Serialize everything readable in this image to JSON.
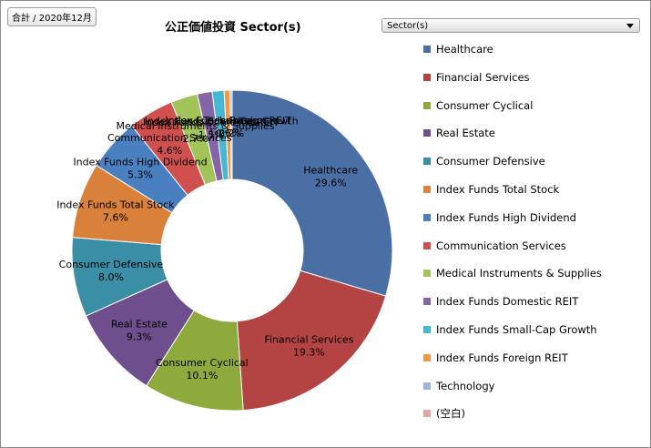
{
  "filter_tag": "合計 / 2020年12月",
  "dropdown": {
    "label": "Sector(s)"
  },
  "chart_data": {
    "type": "pie",
    "variant": "donut",
    "title": "公正価値投資  Sector(s)",
    "legend_position": "right",
    "slices": [
      {
        "label": "Healthcare",
        "value": 29.6,
        "display": "29.6%",
        "color": "#4a6fa5"
      },
      {
        "label": "Financial Services",
        "value": 19.3,
        "display": "19.3%",
        "color": "#b44444"
      },
      {
        "label": "Consumer Cyclical",
        "value": 10.1,
        "display": "10.1%",
        "color": "#8eaa3c"
      },
      {
        "label": "Real Estate",
        "value": 9.3,
        "display": "9.3%",
        "color": "#6e4e8c"
      },
      {
        "label": "Consumer Defensive",
        "value": 8.0,
        "display": "8.0%",
        "color": "#3a8ea6"
      },
      {
        "label": "Index Funds Total Stock",
        "value": 7.6,
        "display": "7.6%",
        "color": "#d9803a"
      },
      {
        "label": "Index Funds High Dividend",
        "value": 5.3,
        "display": "5.3%",
        "color": "#4a80c0"
      },
      {
        "label": "Communication Services",
        "value": 4.6,
        "display": "4.6%",
        "color": "#d05050"
      },
      {
        "label": "Medical Instruments & Supplies",
        "value": 2.7,
        "display": "2.7%",
        "color": "#a2c45a"
      },
      {
        "label": "Index Funds Domestic REIT",
        "value": 1.5,
        "display": "1.5%",
        "color": "#8466a8"
      },
      {
        "label": "Index Funds Small-Cap Growth",
        "value": 1.2,
        "display": "1.2%",
        "color": "#44b8d4"
      },
      {
        "label": "Index Funds Foreign REIT",
        "value": 0.6,
        "display": "0.6%",
        "color": "#f09a48"
      },
      {
        "label": "Technology",
        "value": 0.2,
        "display": "0.2%",
        "color": "#9db4dc"
      },
      {
        "label": "(空白)",
        "value": 0.0,
        "display": "",
        "color": "#e4a4a4"
      }
    ]
  }
}
